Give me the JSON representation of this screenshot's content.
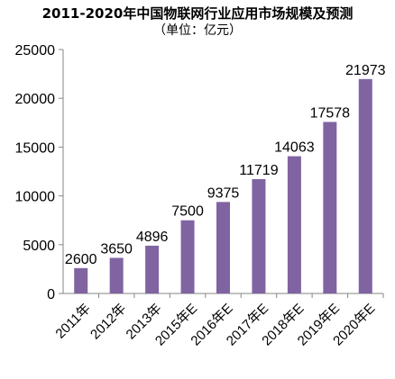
{
  "chart_data": {
    "type": "bar",
    "title": "2011-2020年中国物联网行业应用市场规模及预测",
    "subtitle": "（单位：亿元）",
    "categories": [
      "2011年",
      "2012年",
      "2013年",
      "2015年E",
      "2016年E",
      "2017年E",
      "2018年E",
      "2019年E",
      "2020年E"
    ],
    "values": [
      2600,
      3650,
      4896,
      7500,
      9375,
      11719,
      14063,
      17578,
      21973
    ],
    "data_labels": [
      "2600",
      "3650",
      "4896",
      "7500",
      "9375",
      "11719",
      "14063",
      "17578",
      "21973"
    ],
    "y_ticks": [
      "0",
      "5000",
      "10000",
      "15000",
      "20000",
      "25000"
    ],
    "ylim": [
      0,
      25000
    ],
    "xlabel": "",
    "ylabel": "",
    "grid": false,
    "legend": "none",
    "bar_color": "#8064a2"
  }
}
